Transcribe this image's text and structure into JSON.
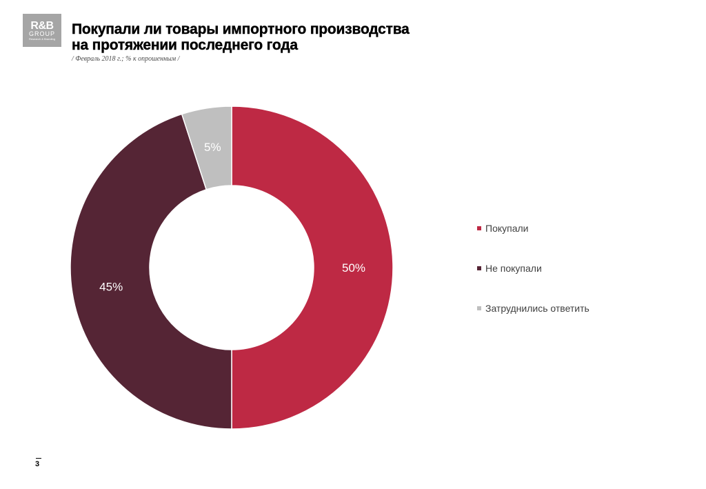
{
  "logo": {
    "main": "R&B",
    "sub": "GROUP",
    "tagline": "Research & Branding"
  },
  "title_lines": [
    "Покупали ли товары импортного производства",
    "на протяжении последнего года"
  ],
  "subtitle": "/ Февраль 2018  г.; % к опрошенным  /",
  "page_number": "3",
  "chart_data": {
    "type": "pie",
    "donut": true,
    "title": "Покупали ли товары импортного производства на протяжении последнего года",
    "subtitle": "/ Февраль 2018  г.; % к опрошенным  /",
    "legend_position": "right",
    "categories": [
      "Покупали",
      "Не покупали",
      "Затруднились ответить"
    ],
    "values": [
      50,
      45,
      5
    ],
    "labels": [
      "50%",
      "45%",
      "5%"
    ],
    "colors": [
      "#be2944",
      "#552535",
      "#bfbfbf"
    ]
  }
}
